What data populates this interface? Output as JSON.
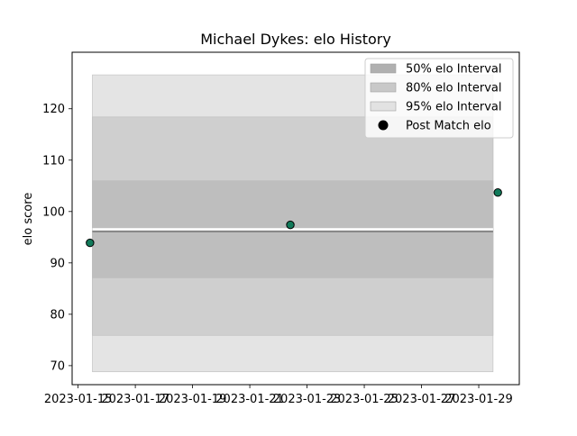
{
  "chart_data": {
    "type": "scatter",
    "title": "Michael Dykes: elo History",
    "xlabel": "",
    "ylabel": "elo score",
    "xlim": [
      "2023-01-14T19:00",
      "2023-01-30T10:00"
    ],
    "ylim": [
      66.3,
      131.0
    ],
    "y_ticks": [
      70,
      80,
      90,
      100,
      110,
      120
    ],
    "x_ticks": [
      "2023-01-15",
      "2023-01-17",
      "2023-01-19",
      "2023-01-21",
      "2023-01-23",
      "2023-01-25",
      "2023-01-27",
      "2023-01-29"
    ],
    "grid": false,
    "legend_position": "top-right",
    "intervals": {
      "x_range": [
        "2023-01-15T12:00",
        "2023-01-29T12:00"
      ],
      "bands": [
        {
          "name": "95% elo Interval",
          "low": 68.8,
          "high": 126.6,
          "color": "#e4e4e4"
        },
        {
          "name": "80% elo Interval",
          "low": 75.9,
          "high": 118.4,
          "color": "#cfcfcf"
        },
        {
          "name": "50% elo Interval",
          "low": 87.1,
          "high": 106.0,
          "color": "#bebebe"
        }
      ]
    },
    "mean_line": {
      "y": 96.1,
      "color": "#888888"
    },
    "series": [
      {
        "name": "Post Match elo",
        "color": "#117a5a",
        "edge_color": "#000000",
        "points": [
          {
            "x": "2023-01-15T10:00",
            "y": 93.9
          },
          {
            "x": "2023-01-22T10:00",
            "y": 97.4
          },
          {
            "x": "2023-01-29T16:00",
            "y": 103.7
          }
        ]
      }
    ],
    "legend": [
      {
        "label": "50% elo Interval",
        "swatch": "#b0b0b0",
        "kind": "patch"
      },
      {
        "label": "80% elo Interval",
        "swatch": "#c8c8c8",
        "kind": "patch"
      },
      {
        "label": "95% elo Interval",
        "swatch": "#e2e2e2",
        "kind": "patch"
      },
      {
        "label": "Post Match elo",
        "swatch": "#000000",
        "kind": "marker"
      }
    ]
  }
}
